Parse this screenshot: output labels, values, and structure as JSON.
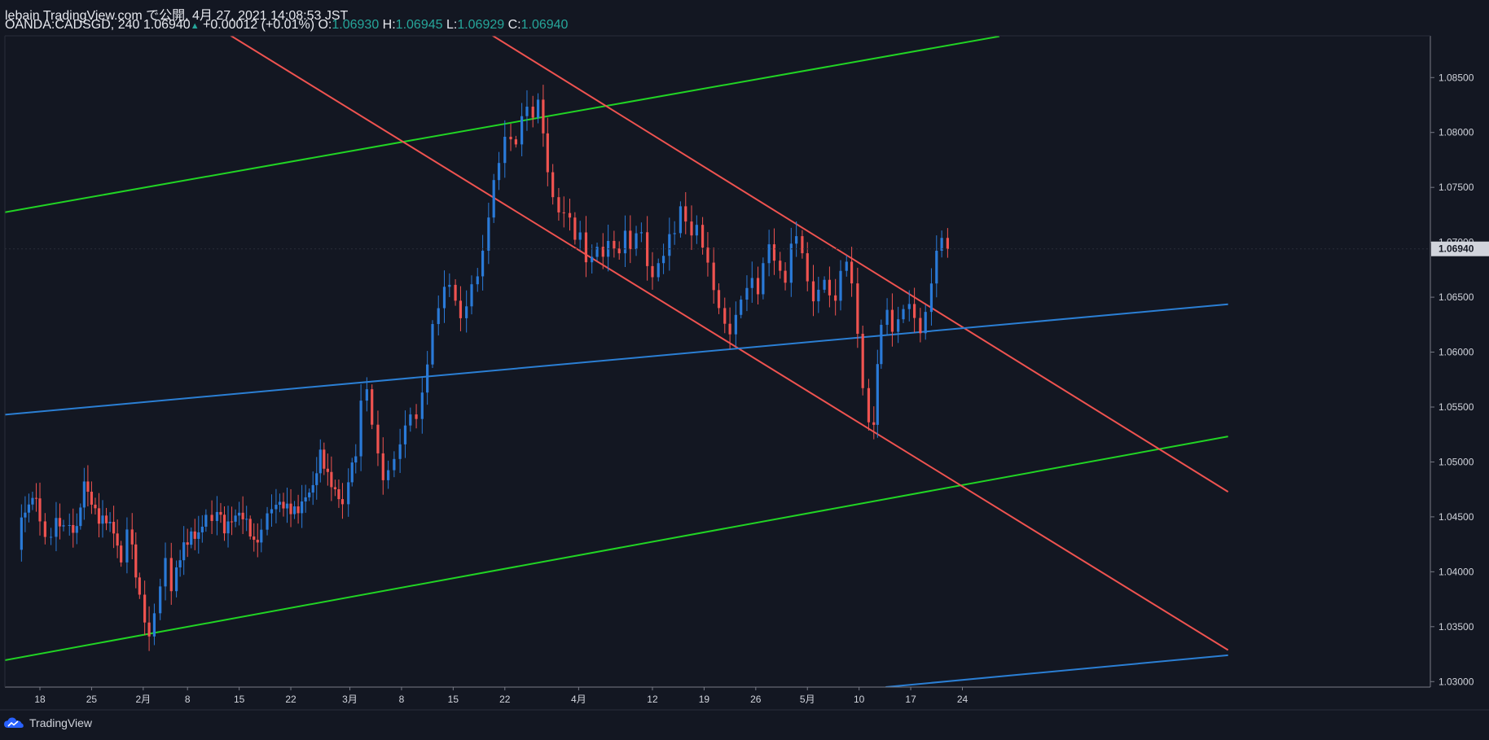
{
  "header": {
    "line1": "lebain TradingView.com で公開, 4月 27, 2021 14:08:53 JST",
    "symbol": "OANDA:CADSGD, 240",
    "last": "1.06940",
    "change": "+0.00012 (+0.01%)",
    "o_label": "O:",
    "o": "1.06930",
    "h_label": "H:",
    "h": "1.06945",
    "l_label": "L:",
    "l": "1.06929",
    "c_label": "C:",
    "c": "1.06940"
  },
  "brand": {
    "name": "TradingView"
  },
  "colors": {
    "bg": "#131722",
    "up": "#2a7ad8",
    "down": "#ef5350",
    "green_channel": "#21d424",
    "red_channel": "#ef5350",
    "blue_line": "#2b7fd4",
    "axis_text": "#d1d4dc"
  },
  "chart_data": {
    "type": "candlestick",
    "y_ticks": [
      "1.03000",
      "1.03500",
      "1.04000",
      "1.04500",
      "1.05000",
      "1.05500",
      "1.06000",
      "1.06500",
      "1.07000",
      "1.07500",
      "1.08000",
      "1.08500"
    ],
    "ylim": [
      1.0295,
      1.0888
    ],
    "price_label": "1.06940",
    "x_ticks": [
      {
        "label": "18",
        "day": 0
      },
      {
        "label": "25",
        "day": 7
      },
      {
        "label": "2月",
        "day": 14
      },
      {
        "label": "8",
        "day": 20
      },
      {
        "label": "15",
        "day": 27
      },
      {
        "label": "22",
        "day": 34
      },
      {
        "label": "3月",
        "day": 42
      },
      {
        "label": "8",
        "day": 49
      },
      {
        "label": "15",
        "day": 56
      },
      {
        "label": "22",
        "day": 63
      },
      {
        "label": "4月",
        "day": 73
      },
      {
        "label": "12",
        "day": 83
      },
      {
        "label": "19",
        "day": 90
      },
      {
        "label": "26",
        "day": 97
      },
      {
        "label": "5月",
        "day": 104
      },
      {
        "label": "10",
        "day": 111
      },
      {
        "label": "17",
        "day": 118
      },
      {
        "label": "24",
        "day": 125
      }
    ],
    "close_path": [
      [
        -3.2,
        1.042
      ],
      [
        -2.5,
        1.0455
      ],
      [
        -1.5,
        1.047
      ],
      [
        -0.5,
        1.0475
      ],
      [
        0,
        1.045
      ],
      [
        0.7,
        1.043
      ],
      [
        1.5,
        1.0425
      ],
      [
        2.2,
        1.044
      ],
      [
        3.2,
        1.0435
      ],
      [
        4,
        1.044
      ],
      [
        5,
        1.0445
      ],
      [
        6,
        1.049
      ],
      [
        7,
        1.047
      ],
      [
        8,
        1.045
      ],
      [
        9,
        1.0445
      ],
      [
        10,
        1.043
      ],
      [
        11,
        1.04
      ],
      [
        11.8,
        1.043
      ],
      [
        12.5,
        1.042
      ],
      [
        13.5,
        1.038
      ],
      [
        14.2,
        1.036
      ],
      [
        14.8,
        1.035
      ],
      [
        15.5,
        1.037
      ],
      [
        16.3,
        1.039
      ],
      [
        17,
        1.041
      ],
      [
        17.8,
        1.0375
      ],
      [
        18.5,
        1.0395
      ],
      [
        19.5,
        1.042
      ],
      [
        20.5,
        1.0435
      ],
      [
        21.5,
        1.044
      ],
      [
        22.5,
        1.046
      ],
      [
        23.3,
        1.0455
      ],
      [
        24,
        1.046
      ],
      [
        25,
        1.0435
      ],
      [
        26,
        1.044
      ],
      [
        27,
        1.0445
      ],
      [
        28,
        1.044
      ],
      [
        29,
        1.0425
      ],
      [
        30,
        1.044
      ],
      [
        30.8,
        1.046
      ],
      [
        32,
        1.047
      ],
      [
        33,
        1.0465
      ],
      [
        34,
        1.0455
      ],
      [
        35,
        1.045
      ],
      [
        36,
        1.046
      ],
      [
        37,
        1.047
      ],
      [
        38,
        1.0505
      ],
      [
        39,
        1.049
      ],
      [
        40,
        1.048
      ],
      [
        41,
        1.047
      ],
      [
        41.8,
        1.049
      ],
      [
        42.8,
        1.051
      ],
      [
        43.5,
        1.0555
      ],
      [
        44.3,
        1.056
      ],
      [
        45,
        1.0525
      ],
      [
        45.8,
        1.05
      ],
      [
        46.5,
        1.048
      ],
      [
        47.2,
        1.0495
      ],
      [
        48,
        1.051
      ],
      [
        48.8,
        1.0525
      ],
      [
        49.5,
        1.054
      ],
      [
        50.2,
        1.0545
      ],
      [
        51,
        1.0535
      ],
      [
        51.8,
        1.0555
      ],
      [
        52.5,
        1.058
      ],
      [
        53.2,
        1.062
      ],
      [
        54,
        1.064
      ],
      [
        54.8,
        1.0665
      ],
      [
        55.5,
        1.067
      ],
      [
        56.3,
        1.0655
      ],
      [
        57,
        1.0635
      ],
      [
        57.8,
        1.064
      ],
      [
        58.5,
        1.0655
      ],
      [
        59.3,
        1.066
      ],
      [
        60,
        1.0685
      ],
      [
        60.8,
        1.072
      ],
      [
        61.5,
        1.076
      ],
      [
        62.2,
        1.078
      ],
      [
        63,
        1.0805
      ],
      [
        63.8,
        1.08
      ],
      [
        64.5,
        1.079
      ],
      [
        65.3,
        1.081
      ],
      [
        66,
        1.0815
      ],
      [
        66.8,
        1.0805
      ],
      [
        67.5,
        1.0825
      ],
      [
        68.2,
        1.08
      ],
      [
        68.8,
        1.077
      ],
      [
        69.5,
        1.075
      ],
      [
        70.3,
        1.0735
      ],
      [
        71,
        1.073
      ],
      [
        71.8,
        1.072
      ],
      [
        72.5,
        1.0695
      ],
      [
        73.2,
        1.07
      ],
      [
        74,
        1.0675
      ],
      [
        74.8,
        1.0685
      ],
      [
        75.5,
        1.07
      ],
      [
        76.3,
        1.0695
      ],
      [
        77,
        1.071
      ],
      [
        77.8,
        1.07
      ],
      [
        78.5,
        1.069
      ],
      [
        79.3,
        1.0705
      ],
      [
        80,
        1.0685
      ],
      [
        80.8,
        1.07
      ],
      [
        81.5,
        1.0705
      ],
      [
        82.3,
        1.068
      ],
      [
        83,
        1.0675
      ],
      [
        83.8,
        1.069
      ],
      [
        84.5,
        1.0695
      ],
      [
        85.3,
        1.071
      ],
      [
        86,
        1.0705
      ],
      [
        86.8,
        1.0725
      ],
      [
        87.5,
        1.071
      ],
      [
        88.3,
        1.07
      ],
      [
        89,
        1.0715
      ],
      [
        89.8,
        1.07
      ],
      [
        90.5,
        1.069
      ],
      [
        91.3,
        1.0665
      ],
      [
        92,
        1.0645
      ],
      [
        92.8,
        1.0625
      ],
      [
        93.5,
        1.061
      ],
      [
        94.3,
        1.0625
      ],
      [
        95,
        1.064
      ],
      [
        95.8,
        1.0655
      ],
      [
        96.5,
        1.067
      ],
      [
        97.3,
        1.066
      ],
      [
        98,
        1.069
      ],
      [
        98.8,
        1.0705
      ],
      [
        99.5,
        1.0685
      ],
      [
        100.3,
        1.067
      ],
      [
        101,
        1.0655
      ],
      [
        101.8,
        1.069
      ],
      [
        102.5,
        1.07
      ],
      [
        103.3,
        1.069
      ],
      [
        104,
        1.067
      ],
      [
        104.8,
        1.0655
      ],
      [
        105.5,
        1.0665
      ],
      [
        106.3,
        1.067
      ],
      [
        107,
        1.065
      ],
      [
        107.8,
        1.064
      ],
      [
        108.5,
        1.0665
      ],
      [
        109.3,
        1.0675
      ],
      [
        110,
        1.066
      ],
      [
        110.8,
        1.062
      ],
      [
        111.5,
        1.0575
      ],
      [
        112.3,
        1.0545
      ],
      [
        113,
        1.054
      ],
      [
        113.5,
        1.059
      ],
      [
        114,
        1.062
      ],
      [
        114.8,
        1.063
      ],
      [
        115.5,
        1.061
      ],
      [
        116.3,
        1.0625
      ],
      [
        117,
        1.064
      ],
      [
        117.8,
        1.065
      ],
      [
        118.5,
        1.064
      ],
      [
        119.3,
        1.0625
      ],
      [
        120,
        1.064
      ],
      [
        120.8,
        1.066
      ],
      [
        121.5,
        1.0685
      ],
      [
        122.2,
        1.0695
      ],
      [
        123,
        1.0694
      ]
    ]
  }
}
